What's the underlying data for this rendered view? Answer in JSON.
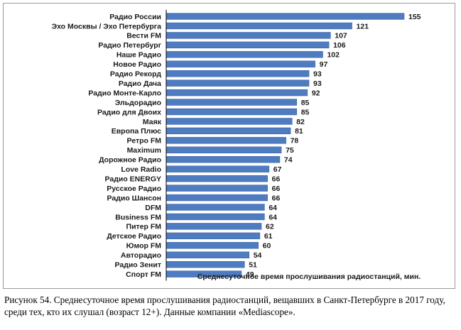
{
  "chart_data": {
    "type": "bar",
    "orientation": "horizontal",
    "categories": [
      "Радио России",
      "Эхо Москвы / Эхо Петербурга",
      "Вести FM",
      "Радио Петербург",
      "Наше Радио",
      "Новое Радио",
      "Радио Рекорд",
      "Радио Дача",
      "Радио Монте-Карло",
      "Эльдорадио",
      "Радио для Двоих",
      "Маяк",
      "Европа Плюс",
      "Ретро FM",
      "Maximum",
      "Дорожное Радио",
      "Love Radio",
      "Радио ENERGY",
      "Русское Радио",
      "Радио Шансон",
      "DFM",
      "Business FM",
      "Питер FM",
      "Детское Радио",
      "Юмор FM",
      "Авторадио",
      "Радио Зенит",
      "Спорт FM"
    ],
    "values": [
      155,
      121,
      107,
      106,
      102,
      97,
      93,
      93,
      92,
      85,
      85,
      82,
      81,
      78,
      75,
      74,
      67,
      66,
      66,
      66,
      64,
      64,
      62,
      61,
      60,
      54,
      51,
      49
    ],
    "xlabel": "Среднесуточное время прослушивания радиостанций, мин.",
    "ylabel": "",
    "data_labels": true,
    "grid": false,
    "legend": "none",
    "colors": {
      "bar": "#4f7cc0",
      "bar_edge": "#3a65a8",
      "axis": "#000000",
      "text": "#1a1a1a"
    }
  },
  "caption": "Рисунок 54. Среднесуточное время прослушивания радиостанций, вещавших в Санкт-Петербурге в 2017 году, среди тех, кто их слушал (возраст 12+). Данные компании «Mediascope»."
}
